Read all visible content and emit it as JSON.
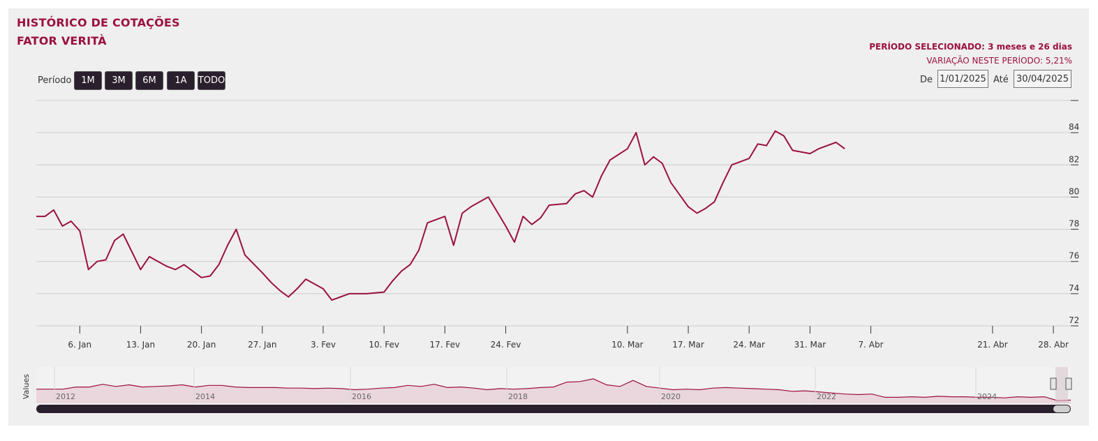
{
  "header": {
    "title_line1": "HISTÓRICO DE COTAÇÕES",
    "title_line2": "FATOR VERITÀ",
    "period_selected": "PERÍODO SELECIONADO: 3 meses e 26 dias",
    "variation": "VARIAÇÃO NESTE PERÍODO: 5,21%"
  },
  "range_selector": {
    "label": "Período",
    "buttons": [
      "1M",
      "3M",
      "6M",
      "1A",
      "TODO"
    ],
    "from_label": "De",
    "from_value": "1/01/2025",
    "to_label": "Até",
    "to_value": "30/04/2025"
  },
  "colors": {
    "line": "#9b1040",
    "navigator_fill": "#ead6dd",
    "scrollbar": "#2a1f2c",
    "panel": "#efefef"
  },
  "chart_data": {
    "type": "line",
    "ylim": [
      72,
      86
    ],
    "y_ticks": [
      72,
      74,
      76,
      78,
      80,
      82,
      84
    ],
    "x_range": [
      "2025-01-01",
      "2025-04-30"
    ],
    "x_ticks": [
      {
        "date": "2025-01-06",
        "label": "6. Jan"
      },
      {
        "date": "2025-01-13",
        "label": "13. Jan"
      },
      {
        "date": "2025-01-20",
        "label": "20. Jan"
      },
      {
        "date": "2025-01-27",
        "label": "27. Jan"
      },
      {
        "date": "2025-02-03",
        "label": "3. Fev"
      },
      {
        "date": "2025-02-10",
        "label": "10. Fev"
      },
      {
        "date": "2025-02-17",
        "label": "17. Fev"
      },
      {
        "date": "2025-02-24",
        "label": "24. Fev"
      },
      {
        "date": "2025-03-10",
        "label": "10. Mar"
      },
      {
        "date": "2025-03-17",
        "label": "17. Mar"
      },
      {
        "date": "2025-03-24",
        "label": "24. Mar"
      },
      {
        "date": "2025-03-31",
        "label": "31. Mar"
      },
      {
        "date": "2025-04-07",
        "label": "7. Abr"
      },
      {
        "date": "2025-04-21",
        "label": "21. Abr"
      },
      {
        "date": "2025-04-28",
        "label": "28. Abr"
      }
    ],
    "grid": true,
    "points": [
      [
        "2025-01-01",
        78.8
      ],
      [
        "2025-01-02",
        78.8
      ],
      [
        "2025-01-03",
        79.2
      ],
      [
        "2025-01-04",
        78.2
      ],
      [
        "2025-01-05",
        78.5
      ],
      [
        "2025-01-06",
        77.9
      ],
      [
        "2025-01-07",
        75.5
      ],
      [
        "2025-01-08",
        76.0
      ],
      [
        "2025-01-09",
        76.1
      ],
      [
        "2025-01-10",
        77.3
      ],
      [
        "2025-01-11",
        77.7
      ],
      [
        "2025-01-13",
        75.5
      ],
      [
        "2025-01-14",
        76.3
      ],
      [
        "2025-01-15",
        76.0
      ],
      [
        "2025-01-16",
        75.7
      ],
      [
        "2025-01-17",
        75.5
      ],
      [
        "2025-01-18",
        75.8
      ],
      [
        "2025-01-20",
        75.0
      ],
      [
        "2025-01-21",
        75.1
      ],
      [
        "2025-01-22",
        75.8
      ],
      [
        "2025-01-23",
        77.0
      ],
      [
        "2025-01-24",
        78.0
      ],
      [
        "2025-01-25",
        76.4
      ],
      [
        "2025-01-27",
        75.3
      ],
      [
        "2025-01-28",
        74.7
      ],
      [
        "2025-01-29",
        74.2
      ],
      [
        "2025-01-30",
        73.8
      ],
      [
        "2025-01-31",
        74.3
      ],
      [
        "2025-02-01",
        74.9
      ],
      [
        "2025-02-03",
        74.3
      ],
      [
        "2025-02-04",
        73.6
      ],
      [
        "2025-02-05",
        73.8
      ],
      [
        "2025-02-06",
        74.0
      ],
      [
        "2025-02-07",
        74.0
      ],
      [
        "2025-02-08",
        74.0
      ],
      [
        "2025-02-10",
        74.1
      ],
      [
        "2025-02-11",
        74.8
      ],
      [
        "2025-02-12",
        75.4
      ],
      [
        "2025-02-13",
        75.8
      ],
      [
        "2025-02-14",
        76.7
      ],
      [
        "2025-02-15",
        78.4
      ],
      [
        "2025-02-17",
        78.8
      ],
      [
        "2025-02-18",
        77.0
      ],
      [
        "2025-02-19",
        79.0
      ],
      [
        "2025-02-20",
        79.4
      ],
      [
        "2025-02-21",
        79.7
      ],
      [
        "2025-02-22",
        80.0
      ],
      [
        "2025-02-24",
        78.2
      ],
      [
        "2025-02-25",
        77.2
      ],
      [
        "2025-02-26",
        78.8
      ],
      [
        "2025-02-27",
        78.3
      ],
      [
        "2025-02-28",
        78.7
      ],
      [
        "2025-03-01",
        79.5
      ],
      [
        "2025-03-03",
        79.6
      ],
      [
        "2025-03-04",
        80.2
      ],
      [
        "2025-03-05",
        80.4
      ],
      [
        "2025-03-06",
        80.0
      ],
      [
        "2025-03-07",
        81.3
      ],
      [
        "2025-03-08",
        82.3
      ],
      [
        "2025-03-10",
        83.0
      ],
      [
        "2025-03-11",
        84.0
      ],
      [
        "2025-03-12",
        82.0
      ],
      [
        "2025-03-13",
        82.5
      ],
      [
        "2025-03-14",
        82.1
      ],
      [
        "2025-03-15",
        80.9
      ],
      [
        "2025-03-17",
        79.4
      ],
      [
        "2025-03-18",
        79.0
      ],
      [
        "2025-03-19",
        79.3
      ],
      [
        "2025-03-20",
        79.7
      ],
      [
        "2025-03-21",
        80.9
      ],
      [
        "2025-03-22",
        82.0
      ],
      [
        "2025-03-24",
        82.4
      ],
      [
        "2025-03-25",
        83.3
      ],
      [
        "2025-03-26",
        83.2
      ],
      [
        "2025-03-27",
        84.1
      ],
      [
        "2025-03-28",
        83.8
      ],
      [
        "2025-03-29",
        82.9
      ],
      [
        "2025-03-31",
        82.7
      ],
      [
        "2025-04-01",
        83.0
      ],
      [
        "2025-04-03",
        83.4
      ],
      [
        "2025-04-04",
        83.0
      ]
    ]
  },
  "navigator": {
    "axis_title": "Values",
    "years": [
      "2012",
      "2014",
      "2016",
      "2018",
      "2020",
      "2022",
      "2024"
    ]
  }
}
